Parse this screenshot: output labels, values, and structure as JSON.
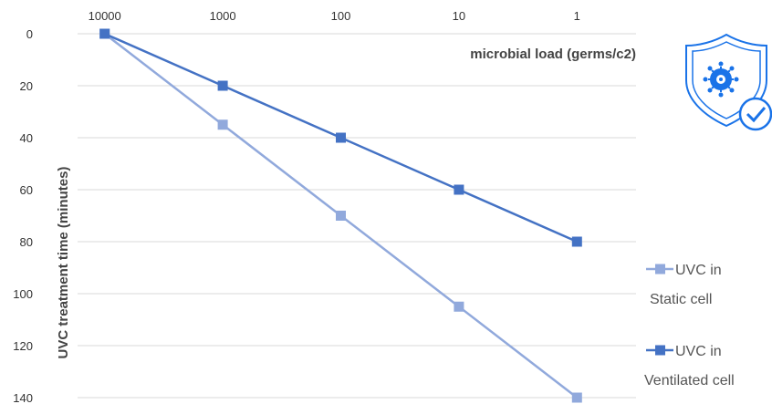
{
  "chart_data": {
    "type": "line",
    "x_axis_position": "top",
    "y_axis_inverted": true,
    "categories": [
      "10000",
      "1000",
      "100",
      "10",
      "1"
    ],
    "xlabel": "microbial load (germs/c2)",
    "ylabel": "UVC treatment time (minutes)",
    "ylim": [
      0,
      140
    ],
    "yticks": [
      0,
      20,
      40,
      60,
      80,
      100,
      120,
      140
    ],
    "grid": true,
    "legend_position": "right",
    "series": [
      {
        "name": "UVC in Static cell",
        "legend_lines": [
          "UVC in",
          "Static cell"
        ],
        "color": "#91a9dc",
        "marker": "square",
        "values": [
          0,
          35,
          70,
          105,
          140
        ]
      },
      {
        "name": "UVC in Ventilated cell",
        "legend_lines": [
          "UVC in",
          "Ventilated cell"
        ],
        "color": "#4472c4",
        "marker": "square",
        "values": [
          0,
          20,
          40,
          60,
          80
        ]
      }
    ]
  },
  "decoration": {
    "icon": "virus-shield-check-icon",
    "icon_color": "#1a73e8"
  }
}
